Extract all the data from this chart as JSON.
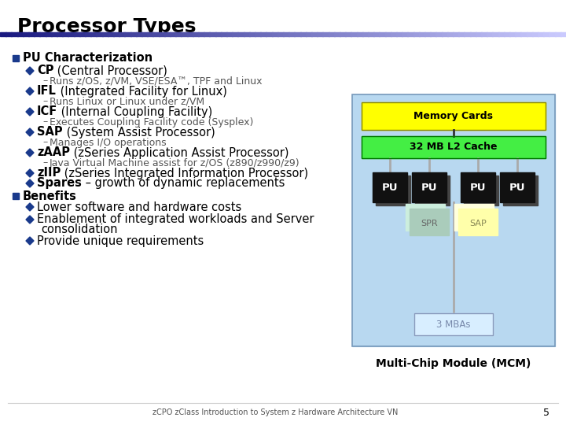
{
  "title": "Processor Types",
  "title_fontsize": 18,
  "bg_color": "#ffffff",
  "bullet_square_color": "#1a3a8c",
  "diamond_color": "#1a3a8c",
  "text_color": "#000000",
  "footer_text": "zCPO zClass Introduction to System z Hardware Architecture VN",
  "page_number": "5",
  "diagram": {
    "outer_bg": "#b8d8f0",
    "memory_card_color": "#ffff00",
    "cache_color": "#44ee44",
    "pu_color": "#111111",
    "pu_text_color": "#ffffff",
    "spr_color1": "#cceecc",
    "spr_color2": "#aaddaa",
    "sap_color1": "#ffffcc",
    "sap_color2": "#ffff99",
    "mba_color": "#d8eeff",
    "memory_label": "Memory Cards",
    "cache_label": "32 MB L2 Cache",
    "pu_labels": [
      "PU",
      "PU",
      "PU",
      "PU"
    ],
    "mba_label": "3 MBAs",
    "mcm_label": "Multi-Chip Module (MCM)"
  }
}
